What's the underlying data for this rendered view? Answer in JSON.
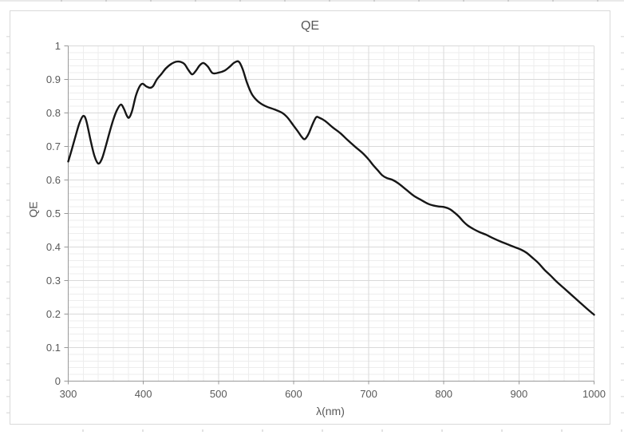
{
  "chart": {
    "title": "QE",
    "x_axis": {
      "label": "λ(nm)",
      "major_ticks": [
        "300",
        "400",
        "500",
        "600",
        "700",
        "800",
        "900",
        "1000"
      ],
      "major_unit": 100,
      "minor_unit": 20
    },
    "y_axis": {
      "label": "QE",
      "major_ticks": [
        "0",
        "0.1",
        "0.2",
        "0.3",
        "0.4",
        "0.5",
        "0.6",
        "0.7",
        "0.8",
        "0.9",
        "1"
      ],
      "major_unit": 0.1,
      "minor_unit": 0.02
    },
    "colors": {
      "line": "#161616",
      "major_grid": "#d9d9d9",
      "minor_grid": "#ededed",
      "axis": "#999999",
      "text": "#595959",
      "chart_border": "#d9d9d9",
      "background": "#ffffff"
    }
  },
  "chart_data": {
    "type": "line",
    "title": "QE",
    "xlabel": "λ(nm)",
    "ylabel": "QE",
    "xlim": [
      300,
      1000
    ],
    "ylim": [
      0,
      1
    ],
    "grid": "major+minor",
    "legend": "none",
    "line_smoothing": true,
    "series": [
      {
        "name": "QE",
        "x": [
          300,
          305,
          310,
          315,
          320,
          324,
          330,
          335,
          340,
          345,
          350,
          355,
          360,
          365,
          370,
          374,
          378,
          381,
          385,
          390,
          395,
          399,
          404,
          409,
          413,
          418,
          424,
          430,
          437,
          444,
          450,
          455,
          460,
          465,
          470,
          475,
          480,
          486,
          492,
          500,
          508,
          515,
          521,
          527,
          532,
          538,
          544,
          550,
          557,
          565,
          575,
          585,
          592,
          600,
          606,
          611,
          615,
          620,
          625,
          630,
          634,
          642,
          652,
          662,
          672,
          682,
          692,
          700,
          706,
          712,
          718,
          724,
          732,
          740,
          750,
          760,
          770,
          779,
          786,
          793,
          801,
          808,
          814,
          820,
          826,
          832,
          840,
          848,
          856,
          865,
          875,
          885,
          895,
          903,
          910,
          918,
          926,
          934,
          942,
          950,
          960,
          970,
          980,
          990,
          1000
        ],
        "y": [
          0.655,
          0.693,
          0.733,
          0.77,
          0.791,
          0.777,
          0.716,
          0.671,
          0.649,
          0.664,
          0.701,
          0.742,
          0.78,
          0.809,
          0.825,
          0.813,
          0.792,
          0.786,
          0.806,
          0.851,
          0.879,
          0.887,
          0.879,
          0.875,
          0.88,
          0.9,
          0.916,
          0.933,
          0.946,
          0.953,
          0.952,
          0.945,
          0.928,
          0.915,
          0.926,
          0.942,
          0.949,
          0.938,
          0.919,
          0.92,
          0.926,
          0.938,
          0.95,
          0.953,
          0.932,
          0.89,
          0.858,
          0.84,
          0.827,
          0.818,
          0.81,
          0.8,
          0.786,
          0.762,
          0.744,
          0.728,
          0.722,
          0.738,
          0.765,
          0.787,
          0.786,
          0.776,
          0.757,
          0.74,
          0.719,
          0.699,
          0.68,
          0.661,
          0.644,
          0.629,
          0.614,
          0.606,
          0.6,
          0.589,
          0.571,
          0.553,
          0.54,
          0.529,
          0.524,
          0.521,
          0.519,
          0.513,
          0.503,
          0.491,
          0.476,
          0.464,
          0.453,
          0.444,
          0.437,
          0.427,
          0.417,
          0.408,
          0.399,
          0.392,
          0.383,
          0.368,
          0.352,
          0.332,
          0.315,
          0.297,
          0.277,
          0.257,
          0.237,
          0.217,
          0.198
        ]
      }
    ]
  }
}
